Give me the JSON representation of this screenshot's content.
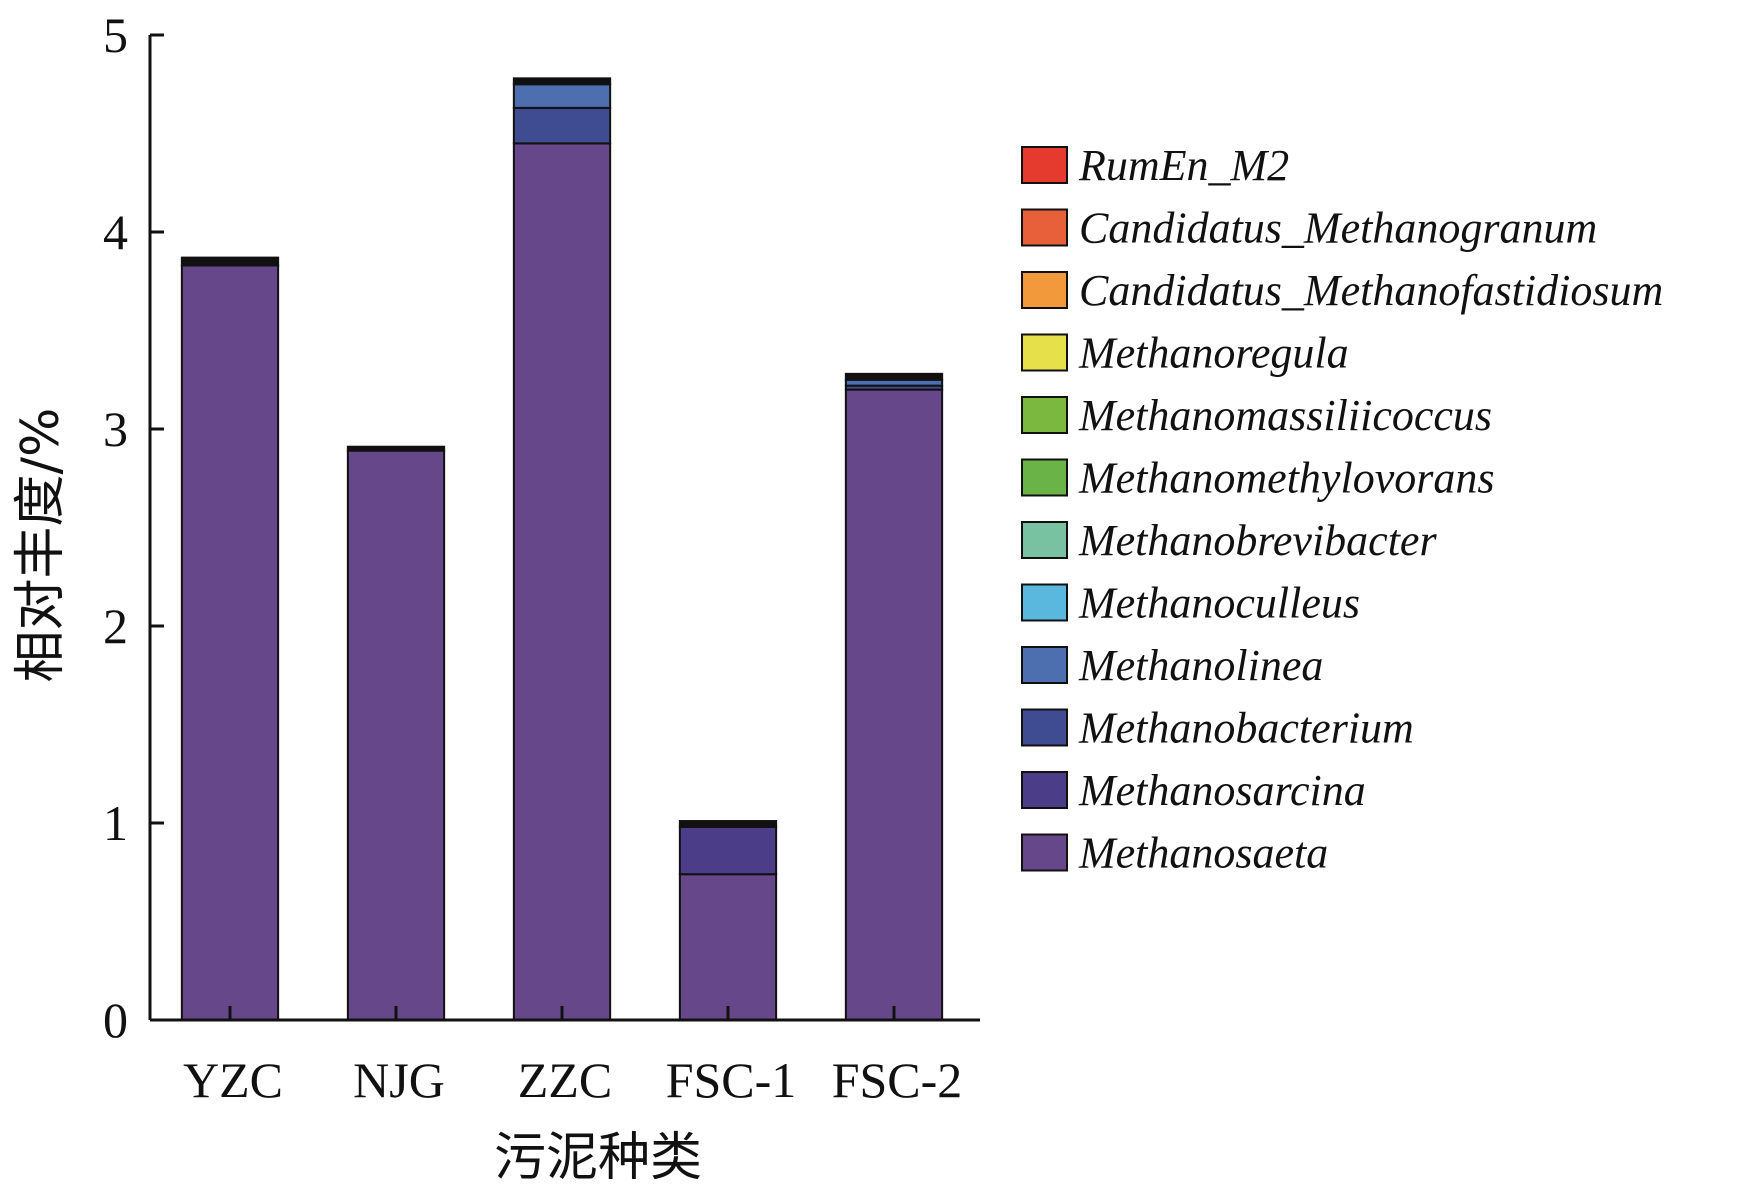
{
  "chart_data": {
    "type": "bar",
    "stacked": true,
    "title": "",
    "xlabel": "污泥种类",
    "ylabel": "相对丰度/%",
    "ylim": [
      0,
      5
    ],
    "yticks": [
      "0",
      "1",
      "2",
      "3",
      "4",
      "5"
    ],
    "grid": false,
    "legend_position": "right",
    "categories": [
      "YZC",
      "NJG",
      "ZZC",
      "FSC-1",
      "FSC-2"
    ],
    "series": [
      {
        "name": "Methanosaeta",
        "color": "#66478a",
        "values": [
          3.83,
          2.89,
          4.45,
          0.74,
          3.2
        ]
      },
      {
        "name": "Methanosarcina",
        "color": "#4b3d88",
        "values": [
          0.0,
          0.0,
          0.0,
          0.24,
          0.0
        ]
      },
      {
        "name": "Methanobacterium",
        "color": "#3f4c92",
        "values": [
          0.0,
          0.0,
          0.18,
          0.0,
          0.02
        ]
      },
      {
        "name": "Methanolinea",
        "color": "#4d6faf",
        "values": [
          0.0,
          0.0,
          0.12,
          0.0,
          0.03
        ]
      },
      {
        "name": "Methanoculleus",
        "color": "#5ab8de",
        "values": [
          0.0,
          0.0,
          0.0,
          0.0,
          0.0
        ]
      },
      {
        "name": "Methanobrevibacter",
        "color": "#78c2a2",
        "values": [
          0.0,
          0.0,
          0.0,
          0.0,
          0.0
        ]
      },
      {
        "name": "Methanomethylovorans",
        "color": "#6ab347",
        "values": [
          0.0,
          0.0,
          0.0,
          0.0,
          0.0
        ]
      },
      {
        "name": "Methanomassiliicoccus",
        "color": "#7bb83f",
        "values": [
          0.0,
          0.0,
          0.0,
          0.0,
          0.0
        ]
      },
      {
        "name": "Methanoregula",
        "color": "#e6e04a",
        "values": [
          0.0,
          0.0,
          0.0,
          0.0,
          0.0
        ]
      },
      {
        "name": "Candidatus_Methanofastidiosum",
        "color": "#f29a3b",
        "values": [
          0.0,
          0.0,
          0.0,
          0.0,
          0.0
        ]
      },
      {
        "name": "Candidatus_Methanogranum",
        "color": "#e8603a",
        "values": [
          0.0,
          0.0,
          0.0,
          0.0,
          0.0
        ]
      },
      {
        "name": "RumEn_M2",
        "color": "#e53a2e",
        "values": [
          0.0,
          0.0,
          0.0,
          0.0,
          0.0
        ]
      },
      {
        "name": "",
        "color": "#111111",
        "values": [
          0.04,
          0.02,
          0.03,
          0.03,
          0.03
        ]
      }
    ],
    "legend_order": [
      "RumEn_M2",
      "Candidatus_Methanogranum",
      "Candidatus_Methanofastidiosum",
      "Methanoregula",
      "Methanomassiliicoccus",
      "Methanomethylovorans",
      "Methanobrevibacter",
      "Methanoculleus",
      "Methanolinea",
      "Methanobacterium",
      "Methanosarcina",
      "Methanosaeta"
    ]
  }
}
